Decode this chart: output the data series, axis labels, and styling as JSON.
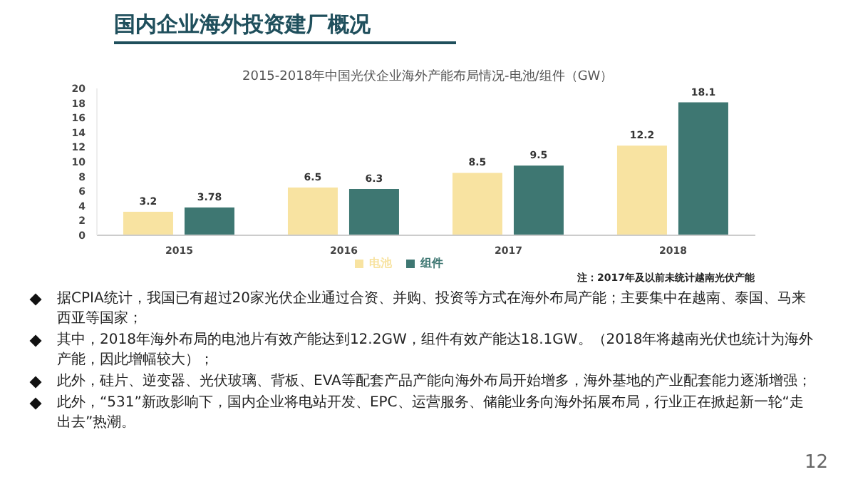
{
  "chart_data": {
    "type": "bar",
    "title": "国内企业海外投资建厂概况",
    "subtitle": "2015-2018年中国光伏企业海外产能布局情况-电池/组件（GW）",
    "categories": [
      "2015",
      "2016",
      "2017",
      "2018"
    ],
    "series": [
      {
        "name": "电池",
        "color": "#f8e3a1",
        "values": [
          3.2,
          6.5,
          8.5,
          12.2
        ]
      },
      {
        "name": "组件",
        "color": "#3e7772",
        "values": [
          3.78,
          6.3,
          9.5,
          18.1
        ]
      }
    ],
    "ylim": [
      0,
      20
    ],
    "yticks": [
      0,
      2,
      4,
      6,
      8,
      10,
      12,
      14,
      16,
      18,
      20
    ],
    "grid": false,
    "legend": "bottom",
    "data_labels": true,
    "annotations": [
      "注：2017年及以前未统计越南光伏产能",
      "据CPIA统计，我国已有超过20家光伏企业通过合资、并购、投资等方式在海外布局产能；主要集中在越南、泰国、马来西亚等国家；",
      "其中，2018年海外布局的电池片有效产能达到12.2GW，组件有效产能达18.1GW。（2018年将越南光伏也统计为海外产能，因此增幅较大）；",
      "此外，硅片、逆变器、光伏玻璃、背板、EVA等配套产品产能向海外布局开始增多，海外基地的产业配套能力逐渐增强；",
      "此外，“531”新政影响下，国内企业将电站开发、EPC、运营服务、储能业务向海外拓展布局，行业正在掀起新一轮“走出去”热潮。",
      "12"
    ]
  }
}
